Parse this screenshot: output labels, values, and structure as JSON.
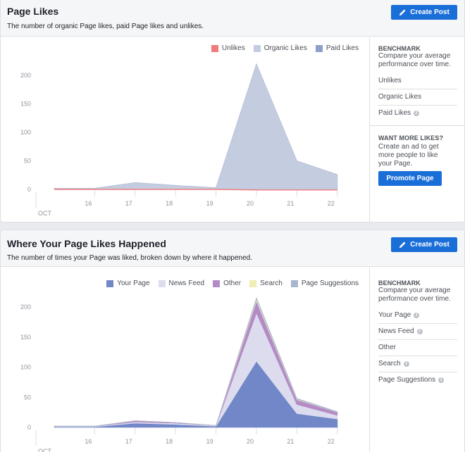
{
  "page_likes": {
    "title": "Page Likes",
    "subtitle": "The number of organic Page likes, paid Page likes and unlikes.",
    "create_post_label": "Create Post",
    "legend": [
      {
        "label": "Unlikes",
        "color": "#f07b7b"
      },
      {
        "label": "Organic Likes",
        "color": "#c4cde0"
      },
      {
        "label": "Paid Likes",
        "color": "#8e9fc9"
      }
    ],
    "benchmark": {
      "heading": "BENCHMARK",
      "text": "Compare your average performance over time.",
      "items": [
        "Unlikes",
        "Organic Likes",
        "Paid Likes"
      ]
    },
    "want_more": {
      "heading": "WANT MORE LIKES?",
      "text": "Create an ad to get more people to like your Page.",
      "button_label": "Promote Page"
    },
    "chart_data": {
      "type": "area",
      "x": [
        "15",
        "16",
        "17",
        "18",
        "19",
        "20",
        "21",
        "22"
      ],
      "x_tick_labels": [
        "16",
        "17",
        "18",
        "19",
        "20",
        "21",
        "22"
      ],
      "month_label": "OCT",
      "y_ticks": [
        "0",
        "50",
        "100",
        "150",
        "200"
      ],
      "ylim": [
        0,
        200
      ],
      "series": [
        {
          "name": "Organic Likes",
          "color": "#c4cde0",
          "values": [
            2,
            2,
            12,
            7,
            3,
            220,
            50,
            26
          ]
        },
        {
          "name": "Unlikes",
          "color": "#f07b7b",
          "values": [
            0,
            0,
            0,
            0,
            0,
            -1,
            -1,
            -1
          ]
        }
      ]
    }
  },
  "where_likes": {
    "title": "Where Your Page Likes Happened",
    "subtitle": "The number of times your Page was liked, broken down by where it happened.",
    "create_post_label": "Create Post",
    "legend": [
      {
        "label": "Your Page",
        "color": "#7187c8"
      },
      {
        "label": "News Feed",
        "color": "#dcdcee"
      },
      {
        "label": "Other",
        "color": "#b48bc6"
      },
      {
        "label": "Search",
        "color": "#eeeeb5"
      },
      {
        "label": "Page Suggestions",
        "color": "#a8b5cf"
      }
    ],
    "benchmark": {
      "heading": "BENCHMARK",
      "text": "Compare your average performance over time.",
      "items": [
        "Your Page",
        "News Feed",
        "Other",
        "Search",
        "Page Suggestions"
      ]
    },
    "chart_data": {
      "type": "area",
      "stacked": true,
      "x": [
        "15",
        "16",
        "17",
        "18",
        "19",
        "20",
        "21",
        "22"
      ],
      "x_tick_labels": [
        "16",
        "17",
        "18",
        "19",
        "20",
        "21",
        "22"
      ],
      "month_label": "OCT",
      "y_ticks": [
        "0",
        "50",
        "100",
        "150",
        "200"
      ],
      "ylim": [
        0,
        200
      ],
      "series": [
        {
          "name": "Your Page",
          "color": "#7187c8",
          "values": [
            1,
            1,
            7,
            5,
            2,
            110,
            23,
            14
          ]
        },
        {
          "name": "News Feed",
          "color": "#dcdcee",
          "values": [
            1,
            1,
            2,
            2,
            1,
            80,
            15,
            6
          ]
        },
        {
          "name": "Other",
          "color": "#b48bc6",
          "values": [
            0,
            0,
            2,
            1,
            0,
            20,
            8,
            5
          ]
        },
        {
          "name": "Search",
          "color": "#eeeeb5",
          "values": [
            0,
            0,
            0,
            0,
            0,
            3,
            1,
            0
          ]
        },
        {
          "name": "Page Suggestions",
          "color": "#a8b5cf",
          "values": [
            0,
            0,
            0,
            0,
            0,
            2,
            1,
            1
          ]
        }
      ]
    }
  }
}
